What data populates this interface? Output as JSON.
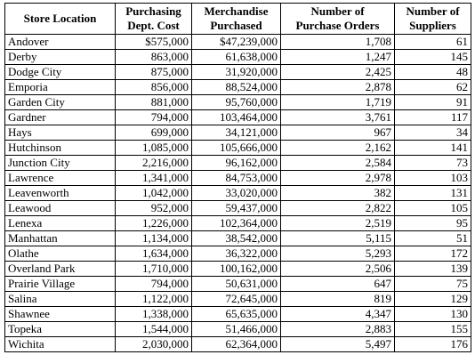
{
  "table": {
    "headers": [
      "Store Location",
      "Purchasing Dept. Cost",
      "Merchandise Purchased",
      "Number of Purchase Orders",
      "Number of Suppliers"
    ],
    "headers_lines": [
      [
        "Store Location"
      ],
      [
        "Purchasing",
        "Dept. Cost"
      ],
      [
        "Merchandise",
        "Purchased"
      ],
      [
        "Number of",
        "Purchase Orders"
      ],
      [
        "Number of",
        "Suppliers"
      ]
    ],
    "rows": [
      [
        "Andover",
        "$575,000",
        "$47,239,000",
        "1,708",
        "61"
      ],
      [
        "Derby",
        "863,000",
        "61,638,000",
        "1,247",
        "145"
      ],
      [
        "Dodge City",
        "875,000",
        "31,920,000",
        "2,425",
        "48"
      ],
      [
        "Emporia",
        "856,000",
        "88,524,000",
        "2,878",
        "62"
      ],
      [
        "Garden City",
        "881,000",
        "95,760,000",
        "1,719",
        "91"
      ],
      [
        "Gardner",
        "794,000",
        "103,464,000",
        "3,761",
        "117"
      ],
      [
        "Hays",
        "699,000",
        "34,121,000",
        "967",
        "34"
      ],
      [
        "Hutchinson",
        "1,085,000",
        "105,666,000",
        "2,162",
        "141"
      ],
      [
        "Junction City",
        "2,216,000",
        "96,162,000",
        "2,584",
        "73"
      ],
      [
        "Lawrence",
        "1,341,000",
        "84,753,000",
        "2,978",
        "103"
      ],
      [
        "Leavenworth",
        "1,042,000",
        "33,020,000",
        "382",
        "131"
      ],
      [
        "Leawood",
        "952,000",
        "59,437,000",
        "2,822",
        "105"
      ],
      [
        "Lenexa",
        "1,226,000",
        "102,364,000",
        "2,519",
        "95"
      ],
      [
        "Manhattan",
        "1,134,000",
        "38,542,000",
        "5,115",
        "51"
      ],
      [
        "Olathe",
        "1,634,000",
        "36,322,000",
        "5,293",
        "172"
      ],
      [
        "Overland Park",
        "1,710,000",
        "100,162,000",
        "2,506",
        "139"
      ],
      [
        "Prairie Village",
        "794,000",
        "50,631,000",
        "647",
        "75"
      ],
      [
        "Salina",
        "1,122,000",
        "72,645,000",
        "819",
        "129"
      ],
      [
        "Shawnee",
        "1,338,000",
        "65,635,000",
        "4,347",
        "130"
      ],
      [
        "Topeka",
        "1,544,000",
        "51,466,000",
        "2,883",
        "155"
      ],
      [
        "Wichita",
        "2,030,000",
        "62,364,000",
        "5,497",
        "176"
      ]
    ]
  }
}
